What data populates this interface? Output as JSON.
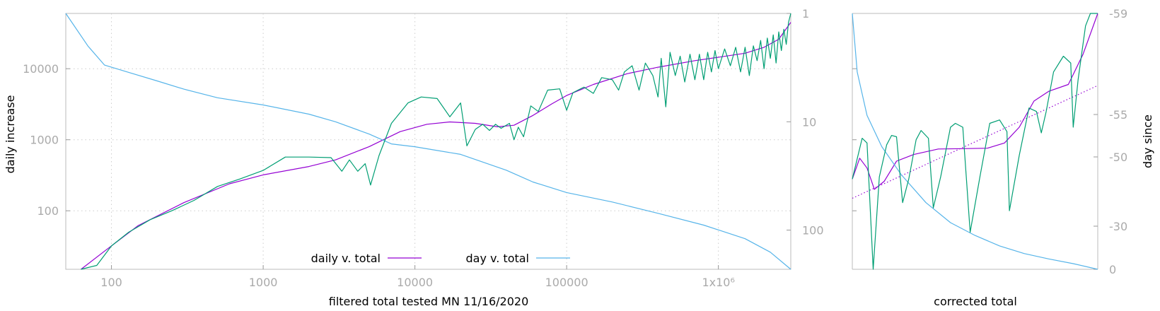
{
  "chart_data": [
    {
      "type": "line",
      "xlabel": "filtered total tested MN 11/16/2020",
      "ylabel": "daily increase",
      "y2label": "",
      "x_scale": "log",
      "y_scale": "log",
      "y2_scale": "log-reversed",
      "xlim": [
        50,
        3000000
      ],
      "ylim": [
        15,
        60000
      ],
      "y2lim": [
        1,
        230
      ],
      "grid": true,
      "x_ticks": [
        {
          "v": 100,
          "label": "100"
        },
        {
          "v": 1000,
          "label": "1000"
        },
        {
          "v": 10000,
          "label": "10000"
        },
        {
          "v": 100000,
          "label": "100000"
        },
        {
          "v": 1000000,
          "label": "1x10⁶"
        }
      ],
      "y_ticks": [
        {
          "v": 100,
          "label": "100"
        },
        {
          "v": 1000,
          "label": "1000"
        },
        {
          "v": 10000,
          "label": "10000"
        }
      ],
      "y2_ticks": [
        {
          "v": 1,
          "label": "1"
        },
        {
          "v": 10,
          "label": "10"
        },
        {
          "v": 100,
          "label": "100"
        }
      ],
      "legend": [
        "daily v. total",
        "day v. total"
      ],
      "legend_position": "bottom-center",
      "colors": {
        "daily": "#9400d3",
        "day": "#56b4e9",
        "raw": "#009e73",
        "grid": "#cccccc",
        "tick": "#aaaaaa"
      },
      "series": [
        {
          "name": "daily v. total",
          "axis": "y",
          "color": "#9400d3",
          "points": [
            [
              63,
              15
            ],
            [
              90,
              27
            ],
            [
              150,
              62
            ],
            [
              300,
              130
            ],
            [
              600,
              240
            ],
            [
              1000,
              320
            ],
            [
              2000,
              420
            ],
            [
              3000,
              520
            ],
            [
              5000,
              800
            ],
            [
              8000,
              1300
            ],
            [
              12000,
              1650
            ],
            [
              17000,
              1780
            ],
            [
              25000,
              1700
            ],
            [
              35000,
              1520
            ],
            [
              45000,
              1600
            ],
            [
              60000,
              2200
            ],
            [
              80000,
              3200
            ],
            [
              100000,
              4200
            ],
            [
              150000,
              6000
            ],
            [
              250000,
              8500
            ],
            [
              400000,
              10500
            ],
            [
              700000,
              13000
            ],
            [
              1000000,
              14500
            ],
            [
              1500000,
              16500
            ],
            [
              2000000,
              20000
            ],
            [
              2500000,
              26000
            ],
            [
              3000000,
              45000
            ]
          ]
        },
        {
          "name": "day v. total",
          "axis": "y2",
          "color": "#56b4e9",
          "points": [
            [
              50,
              1
            ],
            [
              70,
              2
            ],
            [
              90,
              3
            ],
            [
              130,
              3.5
            ],
            [
              200,
              4.2
            ],
            [
              300,
              5
            ],
            [
              500,
              6
            ],
            [
              1000,
              7
            ],
            [
              2000,
              8.5
            ],
            [
              3000,
              10
            ],
            [
              5000,
              13
            ],
            [
              7000,
              16
            ],
            [
              10000,
              17
            ],
            [
              20000,
              20
            ],
            [
              40000,
              28
            ],
            [
              60000,
              36
            ],
            [
              100000,
              45
            ],
            [
              200000,
              55
            ],
            [
              400000,
              70
            ],
            [
              800000,
              90
            ],
            [
              1500000,
              120
            ],
            [
              2200000,
              160
            ],
            [
              3000000,
              230
            ]
          ]
        },
        {
          "axis": "y",
          "color": "#009e73",
          "points": [
            [
              63,
              15
            ],
            [
              80,
              17
            ],
            [
              100,
              32
            ],
            [
              130,
              50
            ],
            [
              180,
              75
            ],
            [
              250,
              100
            ],
            [
              350,
              140
            ],
            [
              500,
              220
            ],
            [
              700,
              280
            ],
            [
              1000,
              370
            ],
            [
              1400,
              570
            ],
            [
              2000,
              570
            ],
            [
              2800,
              560
            ],
            [
              3300,
              360
            ],
            [
              3700,
              520
            ],
            [
              4200,
              360
            ],
            [
              4700,
              460
            ],
            [
              5100,
              230
            ],
            [
              5800,
              600
            ],
            [
              7000,
              1700
            ],
            [
              9000,
              3300
            ],
            [
              11000,
              4000
            ],
            [
              14000,
              3800
            ],
            [
              17000,
              2100
            ],
            [
              20000,
              3300
            ],
            [
              22000,
              820
            ],
            [
              25000,
              1400
            ],
            [
              28000,
              1650
            ],
            [
              31000,
              1350
            ],
            [
              34000,
              1650
            ],
            [
              37000,
              1450
            ],
            [
              42000,
              1700
            ],
            [
              45000,
              1000
            ],
            [
              48000,
              1500
            ],
            [
              52000,
              1100
            ],
            [
              58000,
              3000
            ],
            [
              65000,
              2500
            ],
            [
              75000,
              5000
            ],
            [
              90000,
              5200
            ],
            [
              100000,
              2600
            ],
            [
              110000,
              4600
            ],
            [
              130000,
              5500
            ],
            [
              150000,
              4500
            ],
            [
              170000,
              7500
            ],
            [
              200000,
              7000
            ],
            [
              220000,
              5000
            ],
            [
              240000,
              9000
            ],
            [
              270000,
              11000
            ],
            [
              300000,
              5000
            ],
            [
              330000,
              12000
            ],
            [
              370000,
              8000
            ],
            [
              400000,
              4000
            ],
            [
              420000,
              14000
            ],
            [
              450000,
              2900
            ],
            [
              480000,
              17000
            ],
            [
              520000,
              8000
            ],
            [
              560000,
              15000
            ],
            [
              600000,
              6500
            ],
            [
              650000,
              16000
            ],
            [
              700000,
              7000
            ],
            [
              750000,
              16000
            ],
            [
              800000,
              7000
            ],
            [
              850000,
              17000
            ],
            [
              900000,
              9000
            ],
            [
              950000,
              18000
            ],
            [
              1000000,
              10000
            ],
            [
              1100000,
              19000
            ],
            [
              1200000,
              11000
            ],
            [
              1300000,
              20000
            ],
            [
              1400000,
              9000
            ],
            [
              1500000,
              20000
            ],
            [
              1600000,
              8000
            ],
            [
              1700000,
              21000
            ],
            [
              1800000,
              13000
            ],
            [
              1900000,
              25000
            ],
            [
              2000000,
              10000
            ],
            [
              2100000,
              27000
            ],
            [
              2200000,
              14000
            ],
            [
              2300000,
              30000
            ],
            [
              2400000,
              12000
            ],
            [
              2500000,
              33000
            ],
            [
              2600000,
              18000
            ],
            [
              2700000,
              36000
            ],
            [
              2800000,
              22000
            ],
            [
              2900000,
              45000
            ],
            [
              3000000,
              60000
            ]
          ]
        }
      ]
    },
    {
      "type": "line",
      "xlabel": "corrected total",
      "ylabel": "",
      "y2label": "day since",
      "y_scale": "log",
      "ylim": [
        15,
        60000
      ],
      "y2_ticks": [
        {
          "v": -59,
          "label": "-59"
        },
        {
          "v": -55,
          "label": "-55"
        },
        {
          "v": -50,
          "label": "-50"
        },
        {
          "v": -30,
          "label": "-30"
        },
        {
          "v": 0,
          "label": "0"
        }
      ],
      "colors": {
        "purple": "#9400d3",
        "blue": "#56b4e9",
        "green": "#009e73"
      },
      "series": [
        {
          "color": "#9400d3",
          "points": [
            [
              0,
              280
            ],
            [
              0.03,
              550
            ],
            [
              0.06,
              400
            ],
            [
              0.09,
              200
            ],
            [
              0.13,
              260
            ],
            [
              0.18,
              500
            ],
            [
              0.25,
              620
            ],
            [
              0.35,
              740
            ],
            [
              0.45,
              750
            ],
            [
              0.55,
              760
            ],
            [
              0.62,
              900
            ],
            [
              0.68,
              1500
            ],
            [
              0.74,
              3500
            ],
            [
              0.8,
              4800
            ],
            [
              0.88,
              6000
            ],
            [
              0.94,
              16000
            ],
            [
              1,
              60000
            ]
          ]
        },
        {
          "color": "#9400d3",
          "style": "dotted",
          "points": [
            [
              0,
              150
            ],
            [
              1,
              5800
            ]
          ]
        },
        {
          "color": "#56b4e9",
          "points": [
            [
              0,
              60000
            ],
            [
              0.02,
              9000
            ],
            [
              0.06,
              2200
            ],
            [
              0.12,
              800
            ],
            [
              0.2,
              320
            ],
            [
              0.3,
              130
            ],
            [
              0.4,
              68
            ],
            [
              0.5,
              45
            ],
            [
              0.6,
              32
            ],
            [
              0.7,
              25
            ],
            [
              0.8,
              21
            ],
            [
              0.9,
              18
            ],
            [
              1,
              15
            ]
          ]
        },
        {
          "color": "#009e73",
          "points": [
            [
              0,
              280
            ],
            [
              0.04,
              1050
            ],
            [
              0.06,
              900
            ],
            [
              0.085,
              15
            ],
            [
              0.11,
              300
            ],
            [
              0.14,
              850
            ],
            [
              0.16,
              1150
            ],
            [
              0.18,
              1100
            ],
            [
              0.205,
              130
            ],
            [
              0.23,
              280
            ],
            [
              0.26,
              1000
            ],
            [
              0.28,
              1350
            ],
            [
              0.31,
              1050
            ],
            [
              0.33,
              110
            ],
            [
              0.36,
              300
            ],
            [
              0.4,
              1500
            ],
            [
              0.42,
              1700
            ],
            [
              0.45,
              1500
            ],
            [
              0.48,
              50
            ],
            [
              0.52,
              300
            ],
            [
              0.56,
              1700
            ],
            [
              0.6,
              1900
            ],
            [
              0.63,
              1300
            ],
            [
              0.64,
              100
            ],
            [
              0.68,
              600
            ],
            [
              0.72,
              2800
            ],
            [
              0.75,
              2500
            ],
            [
              0.77,
              1250
            ],
            [
              0.79,
              2500
            ],
            [
              0.82,
              9000
            ],
            [
              0.86,
              15000
            ],
            [
              0.89,
              12000
            ],
            [
              0.9,
              1500
            ],
            [
              0.92,
              7000
            ],
            [
              0.95,
              40000
            ],
            [
              0.97,
              60000
            ],
            [
              1,
              60000
            ]
          ]
        }
      ]
    }
  ]
}
